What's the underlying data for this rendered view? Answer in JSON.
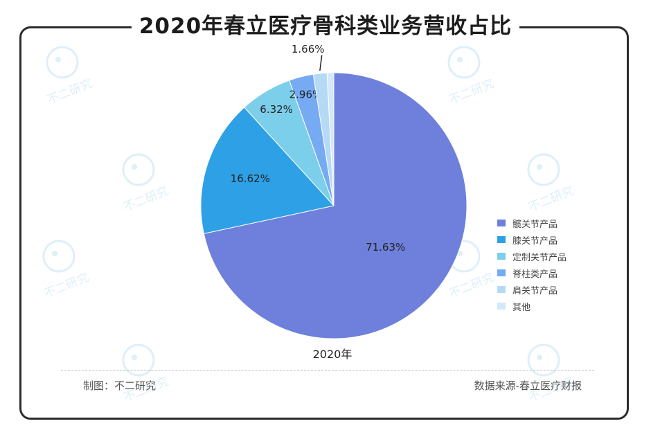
{
  "title": "2020年春立医疗骨科类业务营收占比",
  "watermark": "不二研究",
  "footer": {
    "left": "制图：不二研究",
    "right": "数据来源-春立医疗财报"
  },
  "chart_data": {
    "type": "pie",
    "xlabel": "2020年",
    "slices": [
      {
        "name": "髋关节产品",
        "value": 71.63,
        "label": "71.63%",
        "color": "#6e80dc"
      },
      {
        "name": "膝关节产品",
        "value": 16.62,
        "label": "16.62%",
        "color": "#2ea0e6"
      },
      {
        "name": "定制关节产品",
        "value": 6.32,
        "label": "6.32%",
        "color": "#7ccfea"
      },
      {
        "name": "脊柱类产品",
        "value": 2.96,
        "label": "2.96%",
        "color": "#76aaf2"
      },
      {
        "name": "肩关节产品",
        "value": 1.66,
        "label": "1.66%",
        "color": "#b5daf6"
      },
      {
        "name": "其他",
        "value": 0.81,
        "label": "",
        "color": "#d3e8f8"
      }
    ],
    "legend_position": "right"
  }
}
